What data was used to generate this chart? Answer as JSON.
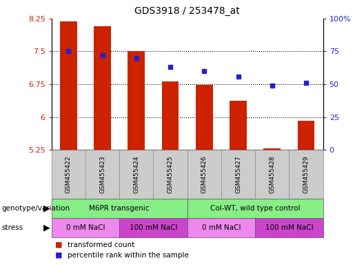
{
  "title": "GDS3918 / 253478_at",
  "categories": [
    "GSM455422",
    "GSM455423",
    "GSM455424",
    "GSM455425",
    "GSM455426",
    "GSM455427",
    "GSM455428",
    "GSM455429"
  ],
  "bar_values": [
    8.18,
    8.08,
    7.5,
    6.82,
    6.74,
    6.37,
    5.28,
    5.92
  ],
  "bar_bottom": 5.25,
  "dot_values": [
    75,
    72,
    70,
    63,
    60,
    56,
    49,
    51
  ],
  "bar_color": "#cc2200",
  "dot_color": "#2222cc",
  "ylim_left": [
    5.25,
    8.25
  ],
  "ylim_right": [
    0,
    100
  ],
  "yticks_left": [
    5.25,
    6.0,
    6.75,
    7.5,
    8.25
  ],
  "ytick_labels_left": [
    "5.25",
    "6",
    "6.75",
    "7.5",
    "8.25"
  ],
  "yticks_right": [
    0,
    25,
    50,
    75,
    100
  ],
  "ytick_labels_right": [
    "0",
    "25",
    "50",
    "75",
    "100%"
  ],
  "hlines": [
    6.0,
    6.75,
    7.5
  ],
  "genotype_groups": [
    {
      "label": "M6PR transgenic",
      "start": 0,
      "end": 4,
      "color": "#88ee88"
    },
    {
      "label": "Col-WT, wild type control",
      "start": 4,
      "end": 8,
      "color": "#88ee88"
    }
  ],
  "stress_groups": [
    {
      "label": "0 mM NaCl",
      "start": 0,
      "end": 2,
      "color": "#ee88ee"
    },
    {
      "label": "100 mM NaCl",
      "start": 2,
      "end": 4,
      "color": "#cc44cc"
    },
    {
      "label": "0 mM NaCl",
      "start": 4,
      "end": 6,
      "color": "#ee88ee"
    },
    {
      "label": "100 mM NaCl",
      "start": 6,
      "end": 8,
      "color": "#cc44cc"
    }
  ],
  "legend_bar_label": "transformed count",
  "legend_dot_label": "percentile rank within the sample",
  "genotype_label": "genotype/variation",
  "stress_label": "stress",
  "bar_width": 0.5,
  "xtick_bg_color": "#cccccc",
  "fig_bg_color": "#ffffff"
}
